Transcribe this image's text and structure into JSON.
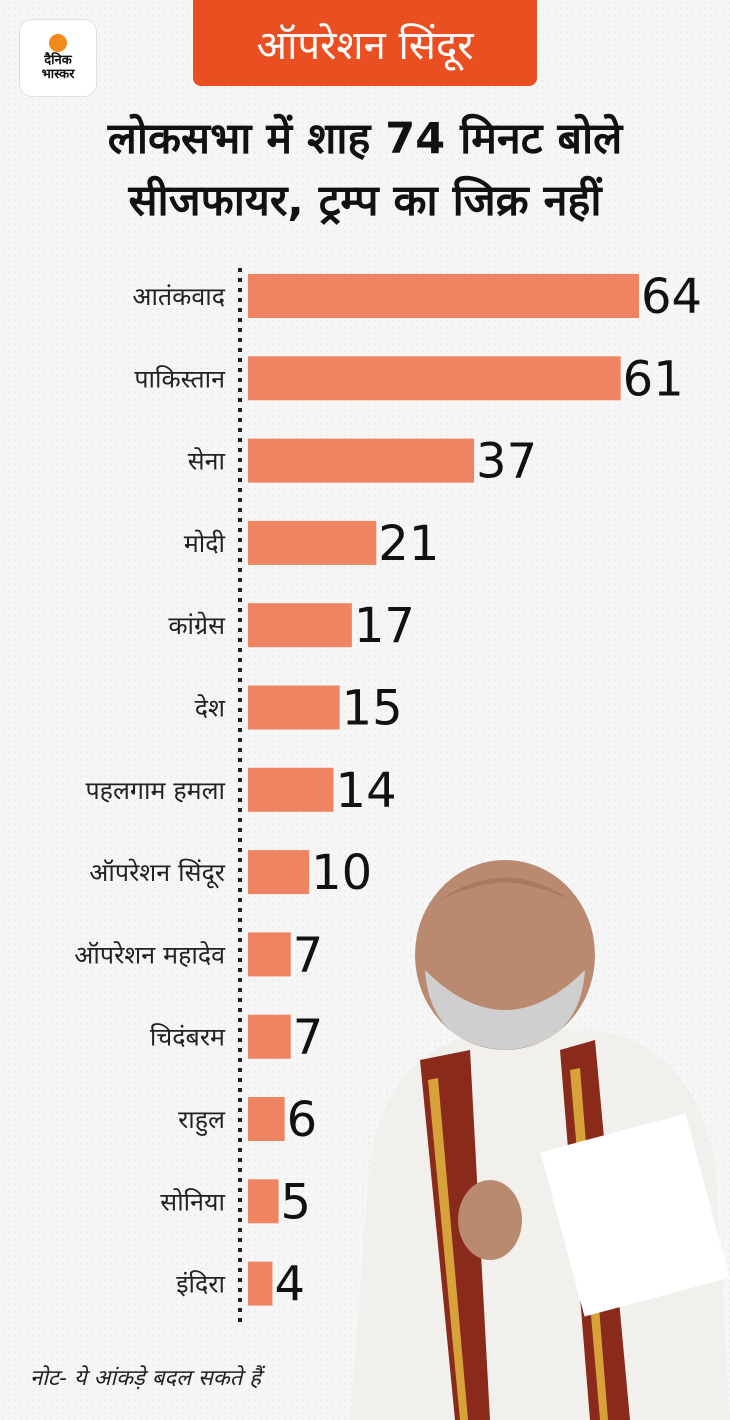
{
  "logo": {
    "line1": "दैनिक",
    "line2": "भास्कर"
  },
  "badge": "ऑपरेशन सिंदूर",
  "headline": {
    "line1": "लोकसभा में शाह 74 मिनट बोले",
    "line2": "सीजफायर, ट्रम्प का जिक्र नहीं"
  },
  "note": "नोट- ये आंकड़े बदल सकते हैं",
  "colors": {
    "bar": "#ee8461",
    "badge": "#e94f20"
  },
  "chart_data": {
    "type": "bar",
    "orientation": "horizontal",
    "title": "",
    "xlabel": "",
    "ylabel": "",
    "categories": [
      "आतंकवाद",
      "पाकिस्तान",
      "सेना",
      "मोदी",
      "कांग्रेस",
      "देश",
      "पहलगाम हमला",
      "ऑपरेशन सिंदूर",
      "ऑपरेशन महादेव",
      "चिदंबरम",
      "राहुल",
      "सोनिया",
      "इंदिरा"
    ],
    "values": [
      64,
      61,
      37,
      21,
      17,
      15,
      14,
      10,
      7,
      7,
      6,
      5,
      4
    ],
    "xlim": [
      0,
      64
    ],
    "grid": false,
    "legend": "none"
  }
}
